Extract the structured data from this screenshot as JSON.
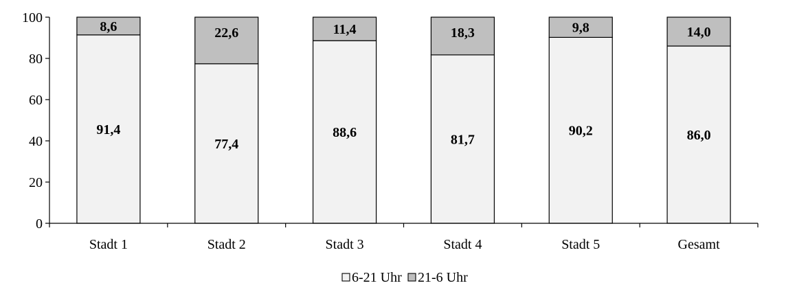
{
  "chart_data": {
    "type": "bar",
    "stacked": true,
    "categories": [
      "Stadt 1",
      "Stadt 2",
      "Stadt 3",
      "Stadt 4",
      "Stadt 5",
      "Gesamt"
    ],
    "series": [
      {
        "name": "6-21 Uhr",
        "color": "#f2f2f2",
        "values": [
          91.4,
          77.4,
          88.6,
          81.7,
          90.2,
          86.0
        ],
        "labels": [
          "91,4",
          "77,4",
          "88,6",
          "81,7",
          "90,2",
          "86,0"
        ]
      },
      {
        "name": "21-6 Uhr",
        "color": "#bfbfbf",
        "values": [
          8.6,
          22.6,
          11.4,
          18.3,
          9.8,
          14.0
        ],
        "labels": [
          "8,6",
          "22,6",
          "11,4",
          "18,3",
          "9,8",
          "14,0"
        ]
      }
    ],
    "y_ticks": [
      "0",
      "20",
      "40",
      "60",
      "80",
      "100"
    ],
    "ylim": [
      0,
      100
    ],
    "title": "",
    "xlabel": "",
    "ylabel": "",
    "grid": false,
    "legend_position": "bottom-center"
  }
}
